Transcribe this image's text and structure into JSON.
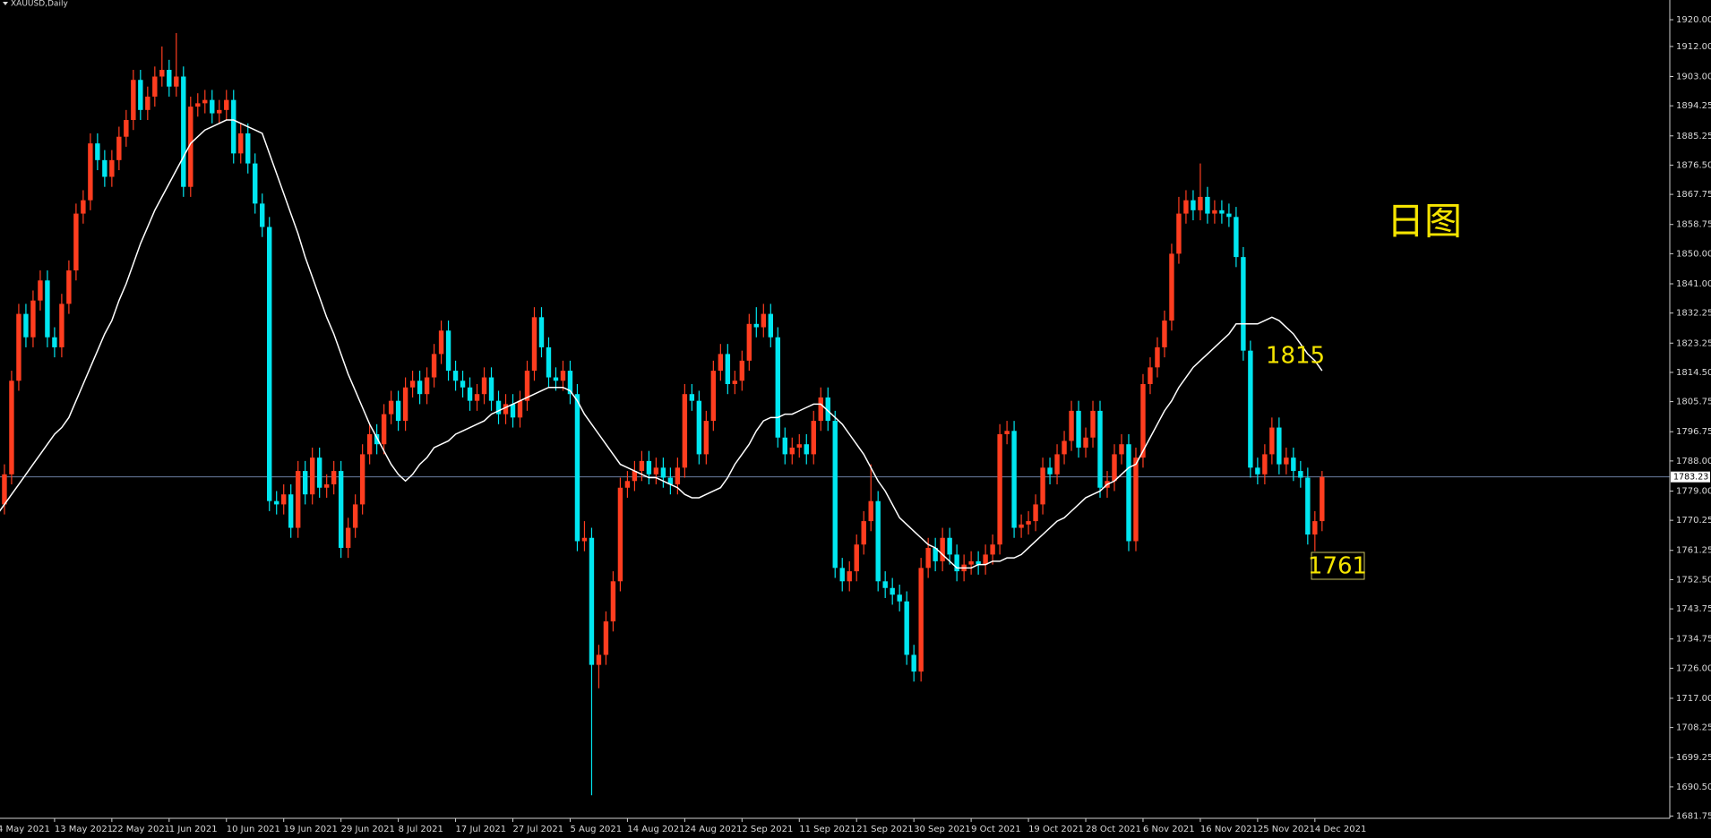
{
  "chart_data": {
    "type": "candlestick",
    "title": "XAUUSD,Daily",
    "background": "#000000",
    "up_color": "#ff3d1f",
    "down_color": "#00e6f0",
    "ma_color": "#ffffff",
    "price_line_color": "#6b7fa3",
    "annotation_color": "#f5e400",
    "annotations": [
      "日图",
      "1815",
      "1761"
    ],
    "last_price": 1783.23,
    "ylim": [
      1681.1,
      1925.9
    ],
    "yticks": [
      {
        "value": 1920,
        "label": "1920.00"
      },
      {
        "value": 1912,
        "label": "1912.00"
      },
      {
        "value": 1903,
        "label": "1903.00"
      },
      {
        "value": 1894.25,
        "label": "1894.25"
      },
      {
        "value": 1885.25,
        "label": "1885.25"
      },
      {
        "value": 1876.5,
        "label": "1876.50"
      },
      {
        "value": 1867.75,
        "label": "1867.75"
      },
      {
        "value": 1858.75,
        "label": "1858.75"
      },
      {
        "value": 1850,
        "label": "1850.00"
      },
      {
        "value": 1841,
        "label": "1841.00"
      },
      {
        "value": 1832.25,
        "label": "1832.25"
      },
      {
        "value": 1823.25,
        "label": "1823.25"
      },
      {
        "value": 1814.5,
        "label": "1814.50"
      },
      {
        "value": 1805.75,
        "label": "1805.75"
      },
      {
        "value": 1796.75,
        "label": "1796.75"
      },
      {
        "value": 1788,
        "label": "1788.00"
      },
      {
        "value": 1779,
        "label": "1779.00"
      },
      {
        "value": 1770.25,
        "label": "1770.25"
      },
      {
        "value": 1761.25,
        "label": "1761.25"
      },
      {
        "value": 1752.5,
        "label": "1752.50"
      },
      {
        "value": 1743.75,
        "label": "1743.75"
      },
      {
        "value": 1734.75,
        "label": "1734.75"
      },
      {
        "value": 1726,
        "label": "1726.00"
      },
      {
        "value": 1717,
        "label": "1717.00"
      },
      {
        "value": 1708.25,
        "label": "1708.25"
      },
      {
        "value": 1699.25,
        "label": "1699.25"
      },
      {
        "value": 1690.5,
        "label": "1690.50"
      },
      {
        "value": 1681.75,
        "label": "1681.75"
      }
    ],
    "categories": [
      "4 May 2021",
      null,
      null,
      null,
      null,
      null,
      null,
      null,
      "13 May 2021",
      null,
      null,
      null,
      null,
      null,
      null,
      null,
      "22 May 2021",
      null,
      null,
      null,
      null,
      null,
      null,
      null,
      "1 Jun 2021",
      null,
      null,
      null,
      null,
      null,
      null,
      null,
      "10 Jun 2021",
      null,
      null,
      null,
      null,
      null,
      null,
      null,
      "19 Jun 2021",
      null,
      null,
      null,
      null,
      null,
      null,
      null,
      "29 Jun 2021",
      null,
      null,
      null,
      null,
      null,
      null,
      null,
      "8 Jul 2021",
      null,
      null,
      null,
      null,
      null,
      null,
      null,
      "17 Jul 2021",
      null,
      null,
      null,
      null,
      null,
      null,
      null,
      "27 Jul 2021",
      null,
      null,
      null,
      null,
      null,
      null,
      null,
      "5 Aug 2021",
      null,
      null,
      null,
      null,
      null,
      null,
      null,
      "14 Aug 2021",
      null,
      null,
      null,
      null,
      null,
      null,
      null,
      "24 Aug 2021",
      null,
      null,
      null,
      null,
      null,
      null,
      null,
      "2 Sep 2021",
      null,
      null,
      null,
      null,
      null,
      null,
      null,
      "11 Sep 2021",
      null,
      null,
      null,
      null,
      null,
      null,
      null,
      "21 Sep 2021",
      null,
      null,
      null,
      null,
      null,
      null,
      null,
      "30 Sep 2021",
      null,
      null,
      null,
      null,
      null,
      null,
      null,
      "9 Oct 2021",
      null,
      null,
      null,
      null,
      null,
      null,
      null,
      "19 Oct 2021",
      null,
      null,
      null,
      null,
      null,
      null,
      null,
      "28 Oct 2021",
      null,
      null,
      null,
      null,
      null,
      null,
      null,
      "6 Nov 2021",
      null,
      null,
      null,
      null,
      null,
      null,
      null,
      "16 Nov 2021",
      null,
      null,
      null,
      null,
      null,
      null,
      null,
      "25 Nov 2021",
      null,
      null,
      null,
      null,
      null,
      null,
      null,
      "4 Dec 2021",
      null
    ],
    "open": [
      1770,
      1775,
      1784,
      1812,
      1832,
      1825,
      1836,
      1842,
      1825,
      1822,
      1835,
      1845,
      1862,
      1866,
      1883,
      1878,
      1873,
      1878,
      1885,
      1890,
      1902,
      1893,
      1897,
      1903,
      1905,
      1900,
      1903,
      1870,
      1894,
      1895,
      1896,
      1892,
      1893,
      1896,
      1880,
      1886,
      1877,
      1865,
      1858,
      1776,
      1775,
      1778,
      1768,
      1785,
      1778,
      1789,
      1780,
      1781,
      1785,
      1762,
      1768,
      1775,
      1790,
      1796,
      1793,
      1802,
      1806,
      1800,
      1810,
      1812,
      1808,
      1813,
      1820,
      1827,
      1815,
      1812,
      1810,
      1806,
      1808,
      1813,
      1806,
      1802,
      1805,
      1801,
      1806,
      1815,
      1831,
      1822,
      1813,
      1812,
      1815,
      1808,
      1764,
      1765,
      1727,
      1730,
      1740,
      1752,
      1780,
      1782,
      1785,
      1788,
      1784,
      1786,
      1783,
      1781,
      1786,
      1808,
      1806,
      1790,
      1800,
      1815,
      1820,
      1811,
      1812,
      1818,
      1829,
      1828,
      1832,
      1825,
      1795,
      1790,
      1792,
      1793,
      1790,
      1800,
      1807,
      1800,
      1756,
      1752,
      1755,
      1763,
      1770,
      1776,
      1752,
      1750,
      1748,
      1746,
      1730,
      1725,
      1756,
      1762,
      1758,
      1765,
      1760,
      1755,
      1757,
      1758,
      1757,
      1760,
      1763,
      1796,
      1797,
      1768,
      1769,
      1770,
      1775,
      1786,
      1784,
      1790,
      1794,
      1803,
      1792,
      1795,
      1803,
      1780,
      1782,
      1790,
      1793,
      1764,
      1789,
      1811,
      1816,
      1822,
      1830,
      1850,
      1862,
      1866,
      1863,
      1867,
      1862,
      1863,
      1862,
      1861,
      1849,
      1821,
      1786,
      1784,
      1790,
      1798,
      1787,
      1789,
      1785,
      1783,
      1766,
      1770
    ],
    "high": [
      1778,
      1787,
      1815,
      1835,
      1835,
      1839,
      1845,
      1845,
      1828,
      1838,
      1848,
      1865,
      1869,
      1886,
      1886,
      1881,
      1881,
      1888,
      1893,
      1905,
      1905,
      1900,
      1906,
      1912,
      1908,
      1916,
      1906,
      1897,
      1898,
      1899,
      1899,
      1896,
      1899,
      1899,
      1889,
      1889,
      1880,
      1868,
      1861,
      1779,
      1781,
      1781,
      1788,
      1788,
      1792,
      1792,
      1784,
      1788,
      1788,
      1771,
      1778,
      1793,
      1799,
      1799,
      1805,
      1809,
      1809,
      1813,
      1815,
      1815,
      1816,
      1823,
      1830,
      1830,
      1818,
      1815,
      1813,
      1811,
      1816,
      1816,
      1809,
      1808,
      1808,
      1809,
      1818,
      1834,
      1834,
      1825,
      1816,
      1818,
      1818,
      1811,
      1770,
      1768,
      1733,
      1743,
      1755,
      1783,
      1785,
      1788,
      1791,
      1791,
      1789,
      1789,
      1786,
      1789,
      1811,
      1811,
      1809,
      1803,
      1818,
      1823,
      1823,
      1815,
      1821,
      1832,
      1834,
      1835,
      1835,
      1828,
      1798,
      1795,
      1796,
      1796,
      1803,
      1810,
      1810,
      1803,
      1759,
      1758,
      1766,
      1773,
      1787,
      1779,
      1755,
      1753,
      1751,
      1749,
      1733,
      1759,
      1765,
      1765,
      1768,
      1768,
      1763,
      1760,
      1761,
      1761,
      1763,
      1766,
      1799,
      1800,
      1800,
      1772,
      1773,
      1778,
      1789,
      1789,
      1793,
      1797,
      1806,
      1806,
      1798,
      1806,
      1806,
      1785,
      1793,
      1796,
      1796,
      1792,
      1814,
      1819,
      1825,
      1833,
      1853,
      1867,
      1869,
      1869,
      1877,
      1870,
      1866,
      1866,
      1865,
      1864,
      1852,
      1824,
      1789,
      1793,
      1801,
      1801,
      1792,
      1792,
      1788,
      1786,
      1773,
      1785
    ],
    "low": [
      1767,
      1772,
      1781,
      1809,
      1822,
      1822,
      1833,
      1822,
      1819,
      1819,
      1832,
      1842,
      1859,
      1863,
      1875,
      1870,
      1870,
      1875,
      1882,
      1887,
      1890,
      1890,
      1894,
      1900,
      1897,
      1897,
      1867,
      1867,
      1891,
      1892,
      1889,
      1889,
      1890,
      1877,
      1877,
      1874,
      1862,
      1855,
      1773,
      1772,
      1772,
      1765,
      1765,
      1775,
      1775,
      1777,
      1777,
      1778,
      1759,
      1759,
      1765,
      1772,
      1787,
      1790,
      1790,
      1799,
      1797,
      1797,
      1807,
      1805,
      1805,
      1810,
      1817,
      1812,
      1809,
      1807,
      1803,
      1803,
      1805,
      1803,
      1799,
      1799,
      1798,
      1798,
      1803,
      1812,
      1819,
      1810,
      1809,
      1809,
      1805,
      1761,
      1761,
      1688,
      1720,
      1727,
      1737,
      1749,
      1777,
      1779,
      1782,
      1781,
      1781,
      1780,
      1778,
      1778,
      1783,
      1803,
      1787,
      1787,
      1797,
      1812,
      1808,
      1808,
      1809,
      1815,
      1825,
      1825,
      1822,
      1792,
      1787,
      1787,
      1789,
      1787,
      1787,
      1797,
      1797,
      1753,
      1749,
      1749,
      1752,
      1760,
      1767,
      1749,
      1747,
      1745,
      1743,
      1727,
      1722,
      1722,
      1753,
      1755,
      1755,
      1757,
      1752,
      1752,
      1754,
      1754,
      1754,
      1757,
      1760,
      1793,
      1765,
      1765,
      1766,
      1767,
      1772,
      1781,
      1781,
      1787,
      1791,
      1789,
      1789,
      1792,
      1777,
      1777,
      1779,
      1787,
      1761,
      1761,
      1786,
      1808,
      1813,
      1819,
      1827,
      1847,
      1859,
      1860,
      1860,
      1859,
      1859,
      1859,
      1858,
      1846,
      1818,
      1783,
      1781,
      1781,
      1787,
      1784,
      1784,
      1782,
      1780,
      1763,
      1761,
      1767
    ],
    "close": [
      1775,
      1784,
      1812,
      1832,
      1825,
      1836,
      1842,
      1825,
      1822,
      1835,
      1845,
      1862,
      1866,
      1883,
      1878,
      1873,
      1878,
      1885,
      1890,
      1902,
      1893,
      1897,
      1903,
      1905,
      1900,
      1903,
      1870,
      1894,
      1895,
      1896,
      1892,
      1893,
      1896,
      1880,
      1886,
      1877,
      1865,
      1858,
      1776,
      1775,
      1778,
      1768,
      1785,
      1778,
      1789,
      1780,
      1781,
      1785,
      1762,
      1768,
      1775,
      1790,
      1796,
      1793,
      1802,
      1806,
      1800,
      1810,
      1812,
      1808,
      1813,
      1820,
      1827,
      1815,
      1812,
      1810,
      1806,
      1808,
      1813,
      1806,
      1802,
      1805,
      1801,
      1806,
      1815,
      1831,
      1822,
      1813,
      1812,
      1815,
      1808,
      1764,
      1765,
      1727,
      1730,
      1740,
      1752,
      1780,
      1782,
      1785,
      1788,
      1784,
      1786,
      1783,
      1781,
      1786,
      1808,
      1806,
      1790,
      1800,
      1815,
      1820,
      1811,
      1812,
      1818,
      1829,
      1828,
      1832,
      1825,
      1795,
      1790,
      1792,
      1793,
      1790,
      1800,
      1807,
      1800,
      1756,
      1752,
      1755,
      1763,
      1770,
      1776,
      1752,
      1750,
      1748,
      1746,
      1730,
      1725,
      1756,
      1762,
      1758,
      1765,
      1760,
      1755,
      1757,
      1758,
      1757,
      1760,
      1763,
      1796,
      1797,
      1768,
      1769,
      1770,
      1775,
      1786,
      1784,
      1790,
      1794,
      1803,
      1792,
      1795,
      1803,
      1780,
      1782,
      1790,
      1793,
      1764,
      1789,
      1811,
      1816,
      1822,
      1830,
      1850,
      1862,
      1866,
      1863,
      1867,
      1862,
      1863,
      1862,
      1861,
      1849,
      1821,
      1786,
      1784,
      1790,
      1798,
      1787,
      1789,
      1785,
      1783,
      1766,
      1770,
      1783.23
    ],
    "moving_average": [
      1772,
      1775,
      1778,
      1781,
      1784,
      1787,
      1790,
      1793,
      1796,
      1798,
      1801,
      1806,
      1811,
      1816,
      1821,
      1826,
      1830,
      1836,
      1841,
      1847,
      1853,
      1858,
      1863,
      1867,
      1871,
      1875,
      1879,
      1883,
      1885,
      1887,
      1888,
      1889,
      1890,
      1890,
      1889,
      1888,
      1887,
      1886,
      1880,
      1874,
      1868,
      1862,
      1856,
      1849,
      1843,
      1837,
      1831,
      1826,
      1820,
      1814,
      1809,
      1804,
      1799,
      1795,
      1791,
      1787,
      1784,
      1782,
      1784,
      1787,
      1789,
      1792,
      1793,
      1794,
      1796,
      1797,
      1798,
      1799,
      1800,
      1802,
      1803,
      1804,
      1805,
      1806,
      1807,
      1808,
      1809,
      1810,
      1810,
      1810,
      1809,
      1806,
      1802,
      1799,
      1796,
      1793,
      1790,
      1787,
      1786,
      1785,
      1784,
      1783,
      1783,
      1782,
      1781,
      1780,
      1778,
      1777,
      1777,
      1778,
      1779,
      1780,
      1783,
      1787,
      1790,
      1793,
      1797,
      1800,
      1801,
      1801,
      1802,
      1802,
      1803,
      1804,
      1805,
      1805,
      1803,
      1801,
      1799,
      1796,
      1793,
      1790,
      1786,
      1782,
      1779,
      1775,
      1771,
      1769,
      1767,
      1765,
      1763,
      1762,
      1760,
      1758,
      1756,
      1756,
      1756,
      1757,
      1757,
      1758,
      1758,
      1759,
      1759,
      1760,
      1762,
      1764,
      1766,
      1768,
      1770,
      1771,
      1773,
      1775,
      1777,
      1778,
      1779,
      1781,
      1782,
      1784,
      1786,
      1787,
      1791,
      1795,
      1799,
      1803,
      1806,
      1810,
      1813,
      1816,
      1818,
      1820,
      1822,
      1824,
      1826,
      1829,
      1829,
      1829,
      1829,
      1830,
      1831,
      1830,
      1828,
      1826,
      1823,
      1820,
      1818,
      1815
    ]
  }
}
